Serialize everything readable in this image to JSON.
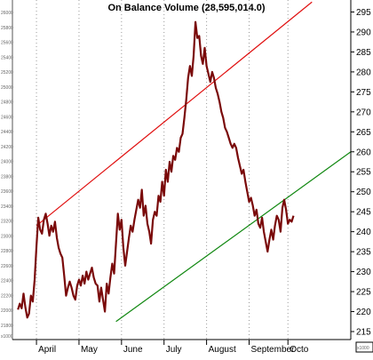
{
  "chart_data": {
    "type": "line",
    "title": "On Balance Volume (28,595,014.0)",
    "x_ticks": [
      "April",
      "May",
      "June",
      "July",
      "August",
      "September",
      "Octo"
    ],
    "y_ticks": [
      215,
      220,
      225,
      230,
      235,
      240,
      245,
      250,
      255,
      260,
      265,
      270,
      275,
      280,
      285,
      290,
      295
    ],
    "y_range": [
      213,
      298
    ],
    "left_axis_ticks": [
      "26000",
      "25800",
      "25600",
      "25400",
      "25200",
      "25000",
      "24800",
      "24600",
      "24400",
      "24200",
      "24000",
      "23800",
      "23600",
      "23400",
      "23200",
      "23000",
      "22800",
      "22600",
      "22400",
      "22200",
      "22000",
      "21800"
    ],
    "left_axis_label": "x1000",
    "right_axis_label": "x1000",
    "series": [
      {
        "color": "#7a0a0a",
        "x": [
          0,
          1,
          2,
          3,
          4,
          5,
          6,
          7,
          8,
          9,
          10,
          11,
          12,
          13,
          14,
          15,
          16,
          17,
          18,
          19,
          20,
          21,
          22,
          23,
          24,
          25,
          26,
          27,
          28,
          29,
          30,
          31,
          32,
          33,
          34,
          35,
          36,
          37,
          38,
          39,
          40,
          41,
          42,
          43,
          44,
          45,
          46,
          47,
          48,
          49,
          50,
          51,
          52,
          53,
          54,
          55,
          56,
          57,
          58,
          59,
          60,
          61,
          62,
          63,
          64,
          65,
          66,
          67,
          68,
          69,
          70,
          71,
          72,
          73,
          74,
          75,
          76,
          77,
          78,
          79,
          80,
          81,
          82,
          83,
          84,
          85,
          86,
          87,
          88,
          89,
          90,
          91,
          92,
          93,
          94,
          95,
          96,
          97,
          98,
          99,
          100,
          101,
          102,
          103,
          104,
          105,
          106,
          107,
          108,
          109,
          110,
          111,
          112,
          113,
          114,
          115,
          116,
          117,
          118,
          119,
          120,
          121,
          122,
          123,
          124,
          125,
          126,
          127,
          128,
          129,
          130,
          131,
          132,
          133,
          134,
          135,
          136,
          137,
          138,
          139,
          140,
          141,
          142,
          143,
          144,
          145,
          146,
          147,
          148,
          149
        ],
        "y": [
          220.5,
          222.0,
          220.8,
          224.5,
          221.0,
          218.5,
          219.5,
          224.0,
          222.5,
          228.0,
          236.5,
          243.5,
          240.5,
          239.5,
          243.0,
          244.5,
          242.0,
          239.0,
          241.5,
          240.0,
          242.5,
          238.5,
          236.0,
          234.5,
          233.5,
          229.0,
          224.0,
          226.0,
          227.5,
          226.0,
          224.0,
          223.0,
          226.5,
          228.0,
          226.5,
          229.0,
          227.0,
          230.0,
          228.0,
          229.5,
          231.0,
          228.5,
          227.0,
          226.5,
          222.5,
          226.0,
          223.0,
          220.0,
          227.0,
          224.5,
          228.5,
          232.0,
          229.5,
          237.0,
          244.5,
          240.5,
          243.0,
          236.0,
          231.5,
          235.0,
          238.5,
          241.5,
          240.0,
          243.0,
          245.5,
          248.0,
          246.0,
          250.5,
          244.0,
          246.5,
          242.0,
          240.0,
          237.0,
          243.0,
          245.0,
          244.0,
          249.0,
          247.5,
          252.5,
          249.0,
          255.5,
          252.5,
          257.5,
          255.0,
          259.0,
          258.0,
          261.0,
          260.0,
          263.5,
          264.5,
          268.5,
          273.0,
          278.5,
          281.5,
          279.0,
          284.0,
          292.5,
          288.5,
          289.0,
          284.0,
          282.0,
          286.0,
          281.5,
          279.5,
          277.5,
          280.0,
          278.5,
          276.0,
          274.5,
          272.5,
          270.0,
          268.5,
          266.0,
          265.0,
          263.5,
          262.0,
          261.0,
          262.0,
          261.0,
          258.5,
          256.5,
          254.5,
          255.5,
          252.5,
          250.0,
          247.5,
          248.5,
          246.5,
          244.0,
          245.5,
          242.0,
          241.0,
          243.5,
          240.0,
          237.5,
          235.0,
          238.0,
          240.5,
          238.0,
          241.5,
          244.0,
          243.0,
          240.0,
          246.0,
          248.0,
          245.5,
          242.0,
          243.0,
          242.5,
          244.0
        ]
      }
    ],
    "trendlines": [
      {
        "color": "#e01010",
        "from": {
          "x": 10,
          "y": 241.5
        },
        "to": {
          "x": 159,
          "y": 297.5
        }
      },
      {
        "color": "#118811",
        "from": {
          "x": 53,
          "y": 217.5
        },
        "to": {
          "x": 180,
          "y": 260.0
        }
      }
    ],
    "x_tick_positions": [
      10,
      33,
      56,
      79,
      102,
      125,
      146
    ],
    "x_range": [
      -3,
      180
    ],
    "grid": "vertical-dotted"
  }
}
